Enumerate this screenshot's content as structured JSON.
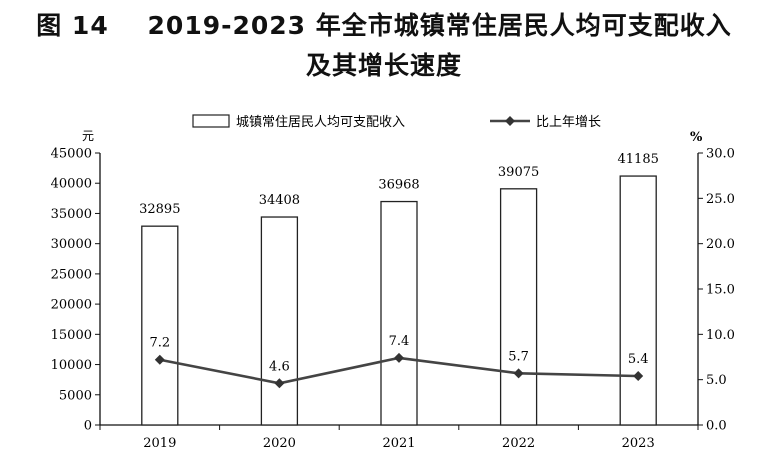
{
  "page": {
    "title_line1": "图 14    2019-2023 年全市城镇常住居民人均可支配收入",
    "title_line2": "及其增长速度"
  },
  "chart_data": {
    "type": "bar+line",
    "categories": [
      "2019",
      "2020",
      "2021",
      "2022",
      "2023"
    ],
    "series": [
      {
        "name": "城镇常住居民人均可支配收入",
        "type": "bar",
        "axis": "left",
        "values": [
          32895,
          34408,
          36968,
          39075,
          41185
        ]
      },
      {
        "name": "比上年增长",
        "type": "line",
        "axis": "right",
        "values": [
          7.2,
          4.6,
          7.4,
          5.7,
          5.4
        ]
      }
    ],
    "left_axis": {
      "unit_label": "元",
      "ylim": [
        0,
        45000
      ],
      "ticks": [
        "0",
        "5000",
        "10000",
        "15000",
        "20000",
        "25000",
        "30000",
        "35000",
        "40000",
        "45000"
      ]
    },
    "right_axis": {
      "unit_label": "%",
      "ylim": [
        0,
        30
      ],
      "ticks": [
        "0.0",
        "5.0",
        "10.0",
        "15.0",
        "20.0",
        "25.0",
        "30.0"
      ]
    },
    "legend_position": "top",
    "grid": false,
    "colors": {
      "bar_fill": "#ffffff",
      "bar_stroke": "#222222",
      "line": "#444444",
      "axis": "#111111"
    }
  }
}
